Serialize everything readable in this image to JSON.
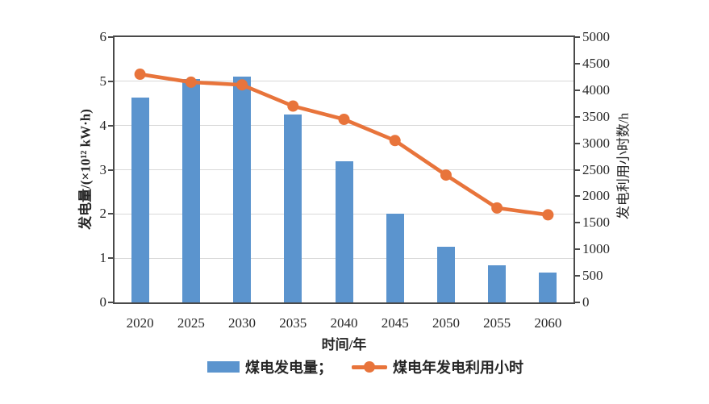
{
  "legend": [
    {
      "type": "bar",
      "label": "煤电发电量；",
      "color": "#5B94CE"
    },
    {
      "type": "line",
      "label": "煤电年发电利用小时",
      "color": "#E8743B"
    }
  ],
  "chart_data": {
    "type": "bar+line combo",
    "categories": [
      "2020",
      "2025",
      "2030",
      "2035",
      "2040",
      "2045",
      "2050",
      "2055",
      "2060"
    ],
    "series": [
      {
        "name": "煤电发电量",
        "type": "bar",
        "axis": "left",
        "color": "#5B94CE",
        "values": [
          4.63,
          5.05,
          5.1,
          4.25,
          3.2,
          2.0,
          1.25,
          0.83,
          0.67
        ]
      },
      {
        "name": "煤电年发电利用小时",
        "type": "line",
        "axis": "right",
        "color": "#E8743B",
        "values": [
          4300,
          4150,
          4100,
          3700,
          3450,
          3050,
          2400,
          1780,
          1650
        ]
      }
    ],
    "xlabel": "时间/年",
    "y_left": {
      "label": "发电量/(×10¹² kW·h)",
      "min": 0,
      "max": 6,
      "step": 1
    },
    "y_right": {
      "label": "发电利用小时数/h",
      "min": 0,
      "max": 5000,
      "step": 500
    },
    "grid": "horizontal gridlines at left-axis integers",
    "legend_position": "bottom center",
    "colors": {
      "grid": "#d8d8d8",
      "axis": "#4a4a4a",
      "text": "#262626"
    }
  }
}
